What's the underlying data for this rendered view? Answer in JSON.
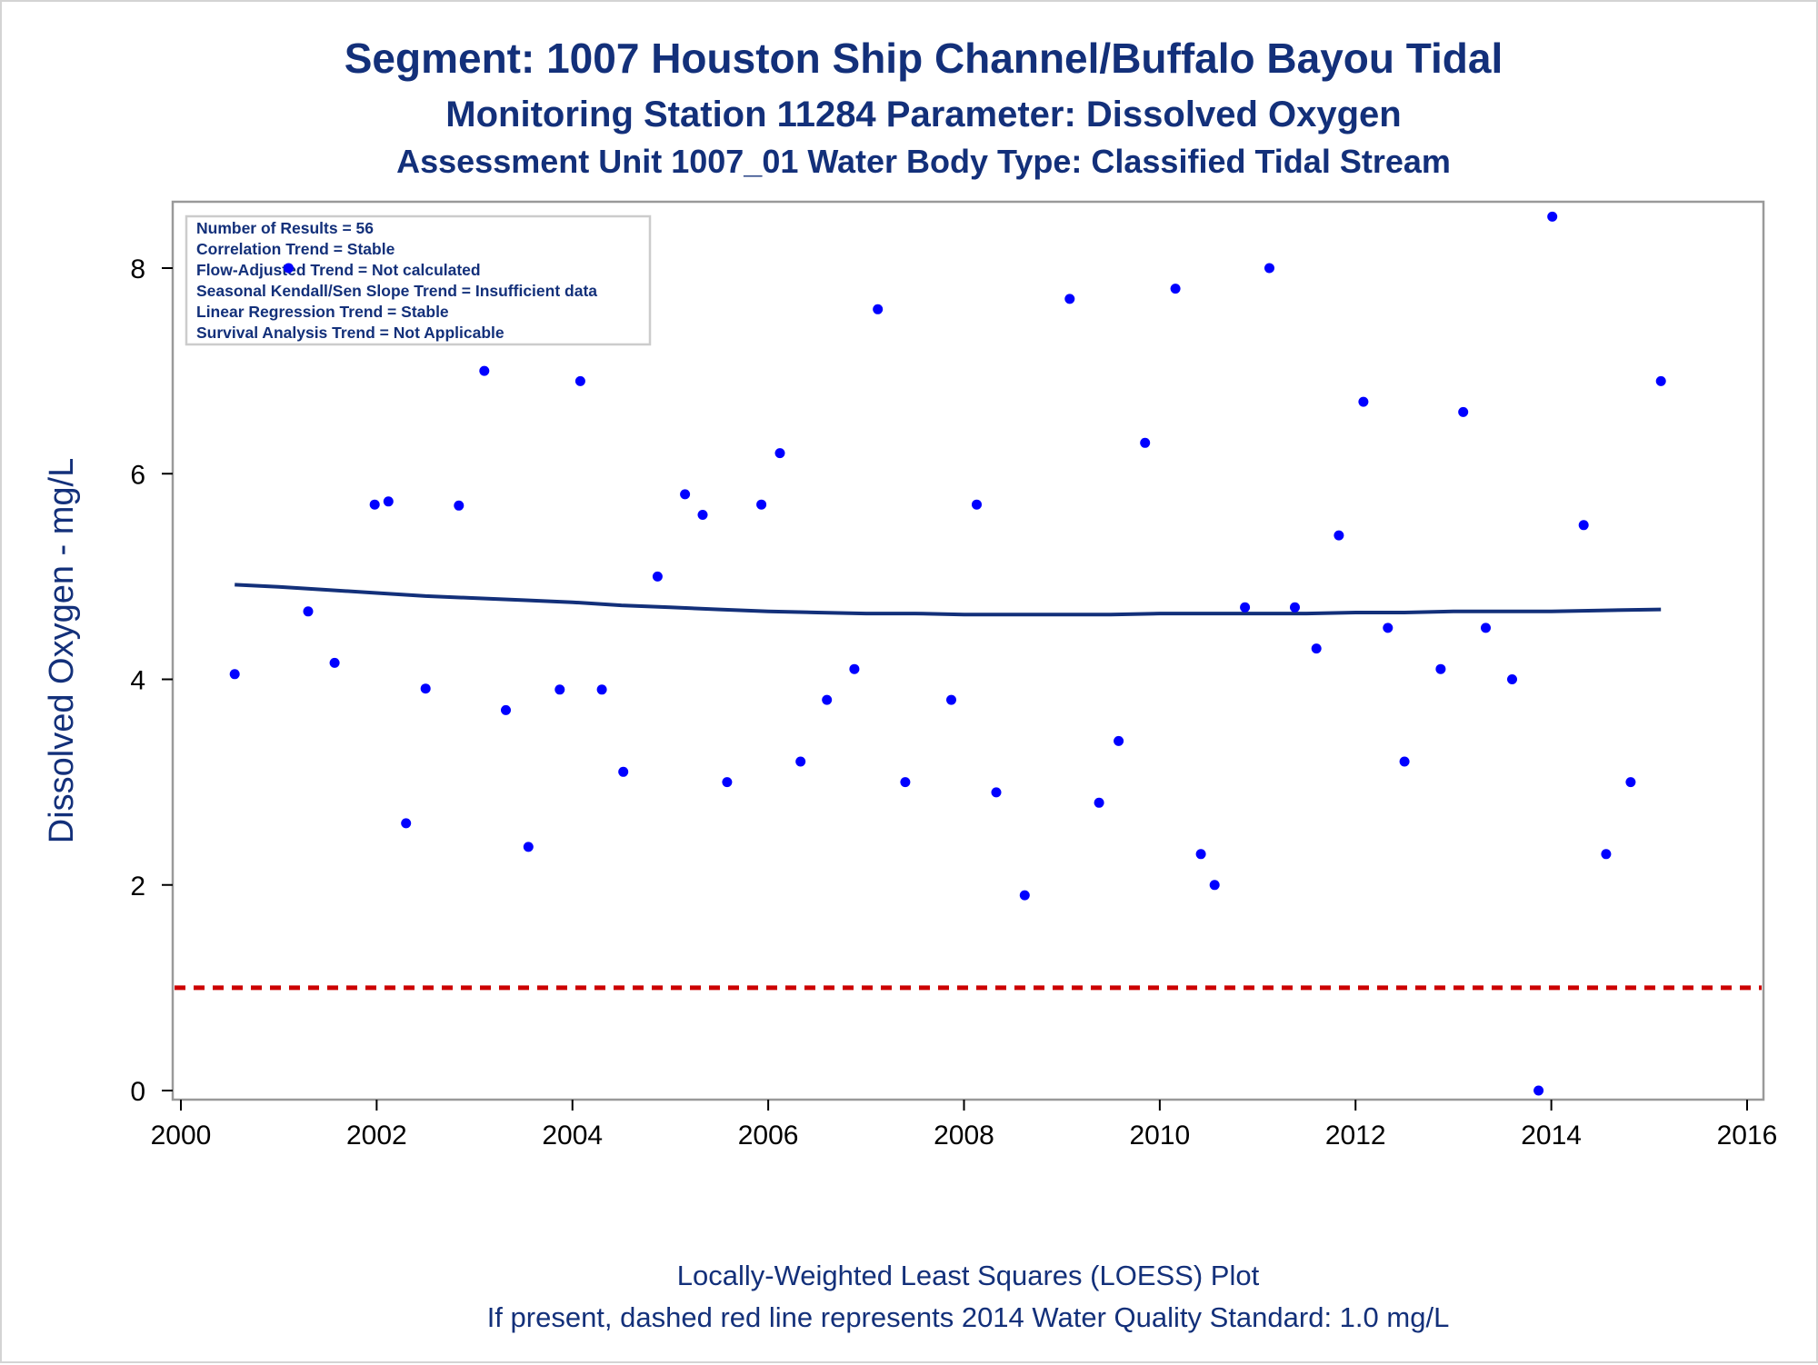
{
  "colors": {
    "title": "#13307a",
    "point": "#0000ff",
    "loess": "#13307a",
    "standard_line": "#cc0000",
    "frame": "#999999"
  },
  "chart_data": {
    "type": "scatter",
    "title": "Segment: 1007  Houston Ship Channel/Buffalo Bayou Tidal",
    "subtitle": "Monitoring Station 11284 Parameter: Dissolved Oxygen",
    "subtitle2": "Assessment Unit 1007_01   Water Body Type: Classified Tidal Stream",
    "xlabel": "",
    "ylabel": "Dissolved Oxygen - mg/L",
    "footnote1": "Locally-Weighted Least Squares (LOESS) Plot",
    "footnote2": "If present, dashed red line represents 2014 Water Quality Standard: 1.0 mg/L",
    "xlim": [
      2000,
      2016
    ],
    "ylim": [
      0,
      8.7
    ],
    "xticks": [
      "2000",
      "2002",
      "2004",
      "2006",
      "2008",
      "2010",
      "2012",
      "2014",
      "2016"
    ],
    "yticks": [
      "0",
      "2",
      "4",
      "6",
      "8"
    ],
    "grid": false,
    "info_box": [
      "Number of Results = 56",
      "Correlation Trend = Stable",
      "Flow-Adjusted Trend = Not calculated",
      "Seasonal Kendall/Sen Slope Trend = Insufficient data",
      "Linear Regression Trend = Stable",
      "Survival Analysis Trend = Not Applicable"
    ],
    "standard_value": 1.0,
    "points": [
      [
        2000.55,
        4.05
      ],
      [
        2001.1,
        8.0
      ],
      [
        2001.3,
        4.66
      ],
      [
        2001.57,
        4.16
      ],
      [
        2001.98,
        5.7
      ],
      [
        2002.12,
        5.73
      ],
      [
        2002.3,
        2.6
      ],
      [
        2002.5,
        3.91
      ],
      [
        2002.84,
        5.69
      ],
      [
        2003.1,
        7.0
      ],
      [
        2003.32,
        3.7
      ],
      [
        2003.55,
        2.37
      ],
      [
        2003.87,
        3.9
      ],
      [
        2004.08,
        6.9
      ],
      [
        2004.3,
        3.9
      ],
      [
        2004.52,
        3.1
      ],
      [
        2004.87,
        5.0
      ],
      [
        2005.15,
        5.8
      ],
      [
        2005.33,
        5.6
      ],
      [
        2005.58,
        3.0
      ],
      [
        2005.93,
        5.7
      ],
      [
        2006.12,
        6.2
      ],
      [
        2006.33,
        3.2
      ],
      [
        2006.6,
        3.8
      ],
      [
        2006.88,
        4.1
      ],
      [
        2007.12,
        7.6
      ],
      [
        2007.4,
        3.0
      ],
      [
        2007.87,
        3.8
      ],
      [
        2008.13,
        5.7
      ],
      [
        2008.33,
        2.9
      ],
      [
        2008.62,
        1.9
      ],
      [
        2009.08,
        7.7
      ],
      [
        2009.38,
        2.8
      ],
      [
        2009.58,
        3.4
      ],
      [
        2009.85,
        6.3
      ],
      [
        2010.16,
        7.8
      ],
      [
        2010.42,
        2.3
      ],
      [
        2010.56,
        2.0
      ],
      [
        2010.87,
        4.7
      ],
      [
        2011.12,
        8.0
      ],
      [
        2011.38,
        4.7
      ],
      [
        2011.6,
        4.3
      ],
      [
        2011.83,
        5.4
      ],
      [
        2012.08,
        6.7
      ],
      [
        2012.33,
        4.5
      ],
      [
        2012.5,
        3.2
      ],
      [
        2012.87,
        4.1
      ],
      [
        2013.1,
        6.6
      ],
      [
        2013.33,
        4.5
      ],
      [
        2013.6,
        4.0
      ],
      [
        2013.87,
        0.0
      ],
      [
        2014.01,
        8.5
      ],
      [
        2014.33,
        5.5
      ],
      [
        2014.56,
        2.3
      ],
      [
        2014.81,
        3.0
      ],
      [
        2015.12,
        6.9
      ]
    ],
    "loess_line": [
      [
        2000.55,
        4.92
      ],
      [
        2001.0,
        4.9
      ],
      [
        2001.5,
        4.87
      ],
      [
        2002.0,
        4.84
      ],
      [
        2002.5,
        4.81
      ],
      [
        2003.0,
        4.79
      ],
      [
        2003.5,
        4.77
      ],
      [
        2004.0,
        4.75
      ],
      [
        2004.5,
        4.72
      ],
      [
        2005.0,
        4.7
      ],
      [
        2005.5,
        4.68
      ],
      [
        2006.0,
        4.66
      ],
      [
        2006.5,
        4.65
      ],
      [
        2007.0,
        4.64
      ],
      [
        2007.5,
        4.64
      ],
      [
        2008.0,
        4.63
      ],
      [
        2008.5,
        4.63
      ],
      [
        2009.0,
        4.63
      ],
      [
        2009.5,
        4.63
      ],
      [
        2010.0,
        4.64
      ],
      [
        2010.5,
        4.64
      ],
      [
        2011.0,
        4.64
      ],
      [
        2011.5,
        4.64
      ],
      [
        2012.0,
        4.65
      ],
      [
        2012.5,
        4.65
      ],
      [
        2013.0,
        4.66
      ],
      [
        2013.5,
        4.66
      ],
      [
        2014.0,
        4.66
      ],
      [
        2014.5,
        4.67
      ],
      [
        2015.12,
        4.68
      ]
    ]
  }
}
